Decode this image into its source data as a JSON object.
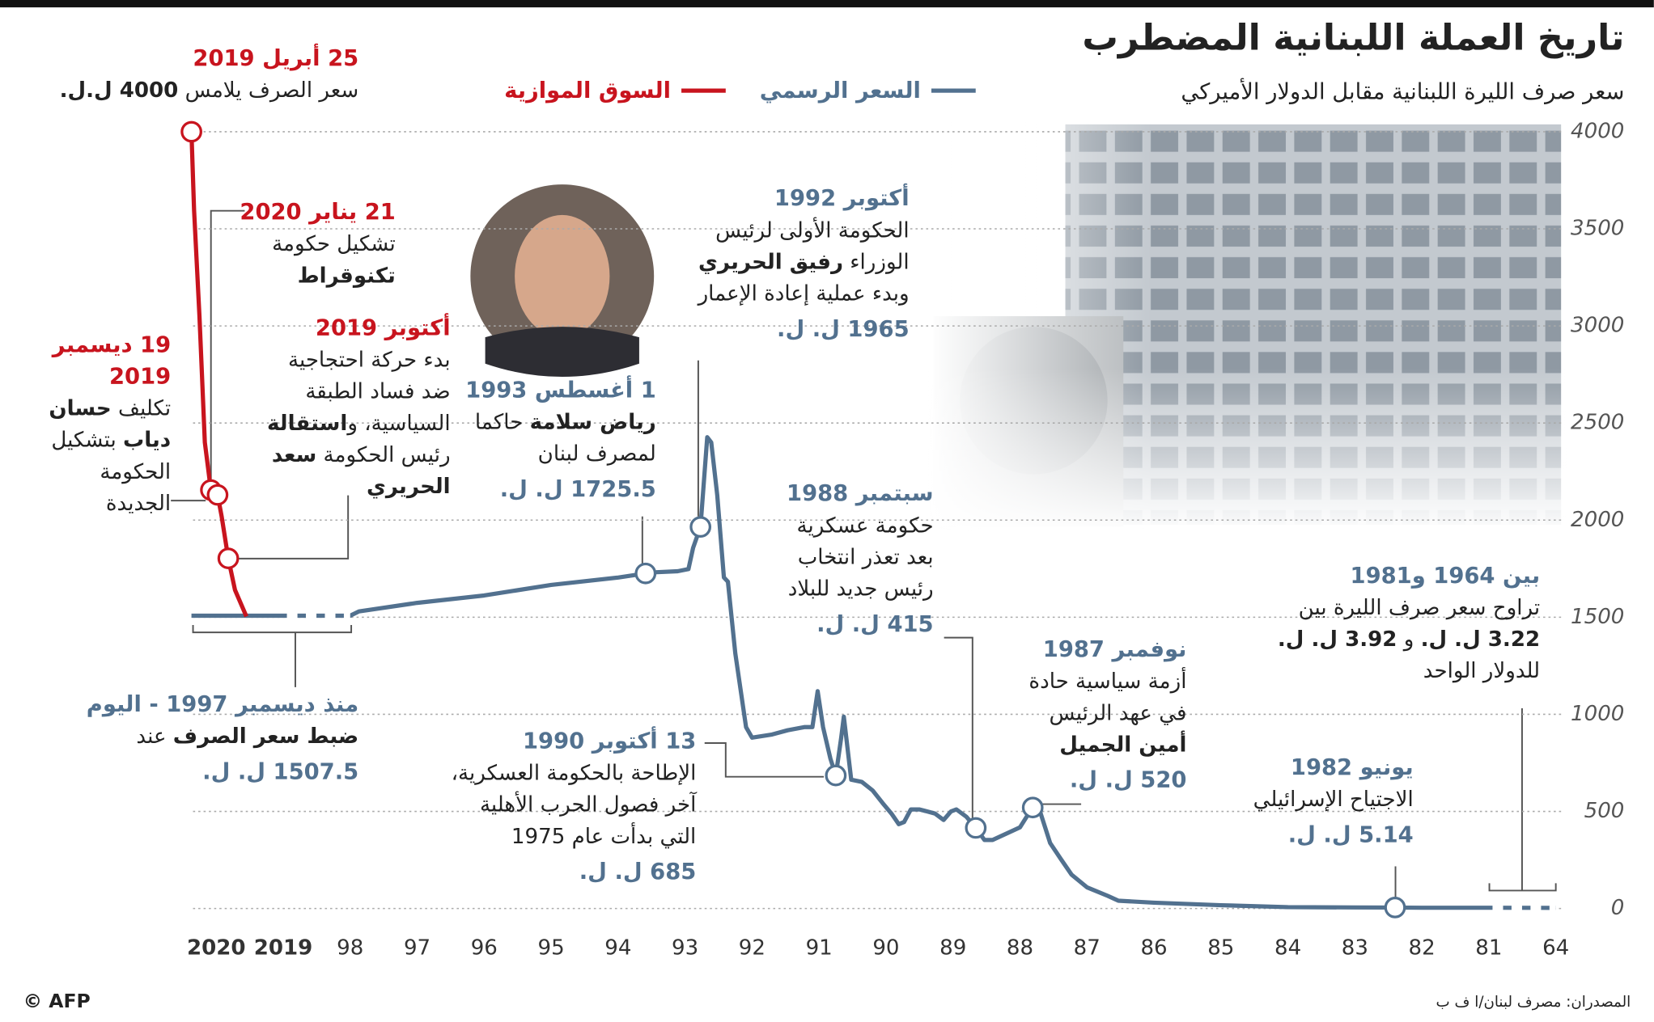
{
  "chart_data": {
    "type": "line",
    "title": "تاريخ العملة اللبنانية المضطرب",
    "subtitle": "سعر صرف الليرة اللبنانية مقابل الدولار الأميركي",
    "source": "المصدران: مصرف لبنان/ا ف ب",
    "credit": "© AFP",
    "ylim": [
      0,
      4000
    ],
    "yticks": [
      0,
      500,
      1000,
      1500,
      2000,
      2500,
      3000,
      3500,
      4000
    ],
    "xticks": [
      {
        "value": 1964,
        "label": "64"
      },
      {
        "value": 1981,
        "label": "81"
      },
      {
        "value": 1982,
        "label": "82"
      },
      {
        "value": 1983,
        "label": "83"
      },
      {
        "value": 1984,
        "label": "84"
      },
      {
        "value": 1985,
        "label": "85"
      },
      {
        "value": 1986,
        "label": "86"
      },
      {
        "value": 1987,
        "label": "87"
      },
      {
        "value": 1988,
        "label": "88"
      },
      {
        "value": 1989,
        "label": "89"
      },
      {
        "value": 1990,
        "label": "90"
      },
      {
        "value": 1991,
        "label": "91"
      },
      {
        "value": 1992,
        "label": "92"
      },
      {
        "value": 1993,
        "label": "93"
      },
      {
        "value": 1994,
        "label": "94"
      },
      {
        "value": 1995,
        "label": "95"
      },
      {
        "value": 1996,
        "label": "96"
      },
      {
        "value": 1997,
        "label": "97"
      },
      {
        "value": 1998,
        "label": "98"
      },
      2019,
      2020
    ],
    "x_reversed": true,
    "grid": true,
    "series": [
      {
        "name": "السعر الرسمي",
        "color": "#52718f",
        "x": [
          1964,
          1981,
          1982,
          1982.4,
          1983,
          1984,
          1985,
          1986,
          1986.53,
          1986.69,
          1987,
          1987.23,
          1987.39,
          1987.55,
          1987.7,
          1987.81,
          1987.9,
          1988,
          1988.17,
          1988.41,
          1988.53,
          1988.66,
          1988.8,
          1988.95,
          1989.03,
          1989.14,
          1989.27,
          1989.5,
          1989.63,
          1989.73,
          1989.81,
          1989.92,
          1990.05,
          1990.2,
          1990.36,
          1990.52,
          1990.63,
          1990.67,
          1990.75,
          1990.83,
          1990.94,
          1991.02,
          1991.1,
          1991.22,
          1991.47,
          1991.7,
          1992,
          1992.09,
          1992.25,
          1992.36,
          1992.42,
          1992.52,
          1992.61,
          1992.67,
          1992.77,
          1992.88,
          1992.95,
          1993.11,
          1993.42,
          1993.59,
          1994,
          1995,
          1996,
          1997,
          1997.87,
          1998,
          2019,
          2020.37
        ],
        "values": [
          3.2,
          3.9,
          4,
          5.14,
          5.5,
          7,
          17,
          30,
          40,
          65,
          109,
          174,
          255,
          337,
          500,
          520,
          472,
          418,
          391,
          353,
          353,
          415,
          472,
          510,
          500,
          456,
          489,
          510,
          510,
          445,
          434,
          489,
          543,
          608,
          652,
          663,
          988,
          880,
          685,
          771,
          934,
          1119,
          934,
          934,
          918,
          896,
          880,
          934,
          1314,
          1683,
          1705,
          2128,
          2400,
          2427,
          1965,
          1857,
          1748,
          1737,
          1732,
          1725.5,
          1704,
          1666,
          1612,
          1574,
          1530,
          1507.5,
          1507.5,
          1507.5
        ]
      },
      {
        "name": "السوق الموازية",
        "color": "#c8141e",
        "x": [
          2019.55,
          2019.72,
          2019.82,
          2019.92,
          2019.98,
          2020.08,
          2020.17,
          2020.25,
          2020.33,
          2020.37
        ],
        "values": [
          1504,
          1640,
          1803,
          2020,
          2130,
          2155,
          2400,
          3050,
          3595,
          4000
        ]
      }
    ],
    "annotations": [
      {
        "date": "25 أبريل 2019",
        "color": "#c8141e",
        "lines": [
          [
            "سعر الصرف يلامس ",
            {
              "text": "4000 ل.ل.",
              "bold": true
            }
          ]
        ],
        "x": 2020.37,
        "value": 4000
      },
      {
        "date": "21 يناير 2020",
        "color": "#c8141e",
        "lines": [
          "تشكيل حكومة",
          [
            {
              "text": "تكنوقراط",
              "bold": true
            }
          ]
        ],
        "x": 2020.08,
        "value": 2155
      },
      {
        "date": "أكتوبر 2019",
        "color": "#c8141e",
        "lines": [
          "بدء حركة احتجاجية",
          "ضد فساد الطبقة",
          [
            "السياسية، و",
            {
              "text": "استقالة",
              "bold": true
            }
          ],
          [
            "رئيس الحكومة ",
            {
              "text": "سعد",
              "bold": true
            }
          ],
          [
            {
              "text": "الحريري",
              "bold": true
            }
          ]
        ],
        "x": 2019.82,
        "value": 1803
      },
      {
        "date": "19 ديسمبر 2019",
        "color": "#c8141e",
        "lines": [
          [
            "تكليف ",
            {
              "text": "حسان",
              "bold": true
            }
          ],
          [
            {
              "text": "دياب",
              "bold": true
            },
            " بتشكيل"
          ],
          "الحكومة",
          "الجديدة"
        ],
        "x": 2019.98,
        "value": 2130
      },
      {
        "date": "1 أغسطس 1993",
        "color": "#52718f",
        "lines": [
          [
            {
              "text": "رياض سلامة",
              "bold": true
            },
            " حاكما"
          ],
          "لمصرف لبنان"
        ],
        "value_label": "1725.5 ل. ل.",
        "x": 1993.59,
        "value": 1725.5
      },
      {
        "date": "أكتوبر 1992",
        "color": "#52718f",
        "lines": [
          "الحكومة الأولى لرئيس",
          [
            "الوزراء ",
            {
              "text": "رفيق الحريري",
              "bold": true
            }
          ],
          "وبدء عملية إعادة الإعمار"
        ],
        "value_label": "1965 ل. ل.",
        "x": 1992.77,
        "value": 1965
      },
      {
        "date": "سبتمبر 1988",
        "color": "#52718f",
        "lines": [
          "حكومة عسكرية",
          "بعد تعذر انتخاب",
          "رئيس جديد للبلاد"
        ],
        "value_label": "415 ل. ل.",
        "x": 1988.66,
        "value": 415
      },
      {
        "date": "نوفمبر 1987",
        "color": "#52718f",
        "lines": [
          "أزمة سياسية حادة",
          "في عهد الرئيس",
          [
            {
              "text": "أمين الجميل",
              "bold": true
            }
          ]
        ],
        "value_label": "520 ل. ل.",
        "x": 1987.81,
        "value": 520
      },
      {
        "date": "13 أكتوبر 1990",
        "color": "#52718f",
        "lines": [
          "الإطاحة بالحكومة العسكرية،",
          "آخر فصول الحرب الأهلية",
          "التي بدأت عام 1975"
        ],
        "value_label": "685 ل. ل.",
        "x": 1990.75,
        "value": 685
      },
      {
        "date": "يونيو 1982",
        "color": "#52718f",
        "lines": [
          "الاجتياح الإسرائيلي"
        ],
        "value_label": "5.14 ل. ل.",
        "x": 1982.4,
        "value": 5.14
      },
      {
        "date": "بين 1964 و1981",
        "color": "#52718f",
        "lines": [
          "تراوح سعر صرف الليرة بين",
          [
            {
              "text": "3.22 ل. ل.",
              "bold": true
            },
            " و ",
            {
              "text": "3.92 ل. ل.",
              "bold": true
            }
          ],
          "للدولار الواحد"
        ]
      },
      {
        "date": "منذ ديسمبر 1997 - اليوم",
        "color": "#52718f",
        "lines": [
          [
            {
              "text": "ضبط سعر الصرف",
              "bold": true
            },
            " عند"
          ]
        ],
        "value_label": "1507.5 ل. ل."
      }
    ]
  }
}
